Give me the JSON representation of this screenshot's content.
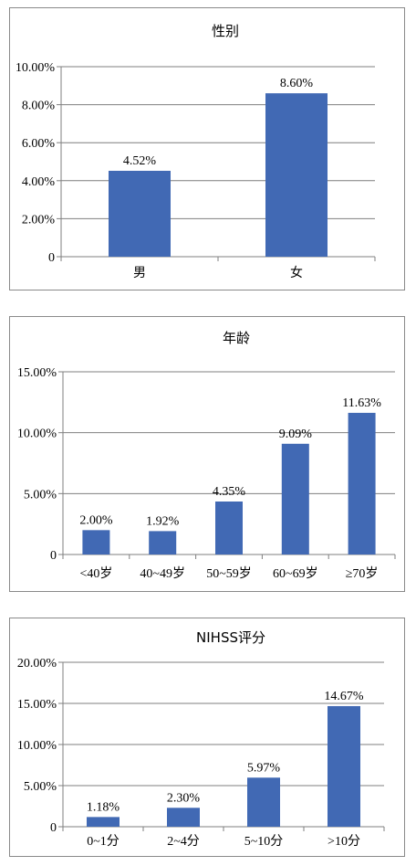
{
  "colors": {
    "bar": "#4169b4",
    "grid": "#7f7f7f",
    "frame": "#8a8a8a"
  },
  "chart_data": [
    {
      "type": "bar",
      "title": "性别",
      "categories": [
        "男",
        "女"
      ],
      "values": [
        4.52,
        8.6
      ],
      "data_labels": [
        "4.52%",
        "8.60%"
      ],
      "yticks": [
        "0",
        "2.00%",
        "4.00%",
        "6.00%",
        "8.00%",
        "10.00%"
      ],
      "ylim": [
        0,
        10
      ],
      "grid": true,
      "xlabel": "",
      "ylabel": ""
    },
    {
      "type": "bar",
      "title": "年龄",
      "categories": [
        "<40岁",
        "40~49岁",
        "50~59岁",
        "60~69岁",
        "≥70岁"
      ],
      "values": [
        2.0,
        1.92,
        4.35,
        9.09,
        11.63
      ],
      "data_labels": [
        "2.00%",
        "1.92%",
        "4.35%",
        "9.09%",
        "11.63%"
      ],
      "yticks": [
        "0",
        "5.00%",
        "10.00%",
        "15.00%"
      ],
      "ylim": [
        0,
        15
      ],
      "grid": true,
      "xlabel": "",
      "ylabel": ""
    },
    {
      "type": "bar",
      "title": "NIHSS评分",
      "categories": [
        "0~1分",
        "2~4分",
        "5~10分",
        ">10分"
      ],
      "values": [
        1.18,
        2.3,
        5.97,
        14.67
      ],
      "data_labels": [
        "1.18%",
        "2.30%",
        "5.97%",
        "14.67%"
      ],
      "yticks": [
        "0",
        "5.00%",
        "10.00%",
        "15.00%",
        "20.00%"
      ],
      "ylim": [
        0,
        20
      ],
      "grid": true,
      "xlabel": "",
      "ylabel": ""
    }
  ]
}
